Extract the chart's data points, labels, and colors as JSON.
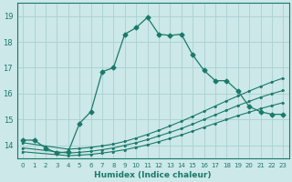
{
  "xlabel": "Humidex (Indice chaleur)",
  "bg_color": "#cce8e8",
  "grid_color": "#aad0d0",
  "line_color": "#1a7a6a",
  "xlim": [
    -0.5,
    23.5
  ],
  "ylim": [
    13.5,
    19.5
  ],
  "yticks": [
    14,
    15,
    16,
    17,
    18,
    19
  ],
  "xticks": [
    0,
    1,
    2,
    3,
    4,
    5,
    6,
    7,
    8,
    9,
    10,
    11,
    12,
    13,
    14,
    15,
    16,
    17,
    18,
    19,
    20,
    21,
    22,
    23
  ],
  "curve1_x": [
    0,
    1,
    2,
    3,
    4,
    5,
    6,
    7,
    8,
    9,
    10,
    11,
    12,
    13,
    14,
    15,
    16,
    17,
    18,
    19,
    20,
    21,
    22,
    23
  ],
  "curve1_y": [
    14.2,
    14.2,
    13.9,
    13.7,
    13.75,
    14.85,
    15.3,
    16.85,
    17.0,
    18.3,
    18.55,
    18.95,
    18.3,
    18.25,
    18.3,
    17.5,
    16.9,
    16.5,
    16.5,
    16.1,
    15.5,
    15.3,
    15.2,
    15.2
  ],
  "curve2_x": [
    0,
    4,
    5,
    6,
    7,
    8,
    9,
    10,
    11,
    12,
    13,
    14,
    15,
    16,
    17,
    18,
    19,
    20,
    21,
    22,
    23
  ],
  "curve2_y": [
    14.1,
    13.85,
    13.88,
    13.92,
    13.98,
    14.05,
    14.15,
    14.28,
    14.42,
    14.58,
    14.75,
    14.93,
    15.12,
    15.32,
    15.52,
    15.72,
    15.91,
    16.1,
    16.28,
    16.45,
    16.6
  ],
  "curve3_x": [
    0,
    4,
    5,
    6,
    7,
    8,
    9,
    10,
    11,
    12,
    13,
    14,
    15,
    16,
    17,
    18,
    19,
    20,
    21,
    22,
    23
  ],
  "curve3_y": [
    13.9,
    13.7,
    13.73,
    13.77,
    13.83,
    13.9,
    14.0,
    14.1,
    14.22,
    14.36,
    14.5,
    14.65,
    14.82,
    15.0,
    15.18,
    15.36,
    15.54,
    15.7,
    15.86,
    16.0,
    16.12
  ],
  "curve4_x": [
    0,
    4,
    5,
    6,
    7,
    8,
    9,
    10,
    11,
    12,
    13,
    14,
    15,
    16,
    17,
    18,
    19,
    20,
    21,
    22,
    23
  ],
  "curve4_y": [
    13.75,
    13.6,
    13.62,
    13.65,
    13.7,
    13.76,
    13.83,
    13.92,
    14.02,
    14.14,
    14.27,
    14.4,
    14.55,
    14.7,
    14.85,
    15.0,
    15.15,
    15.28,
    15.42,
    15.54,
    15.65
  ]
}
